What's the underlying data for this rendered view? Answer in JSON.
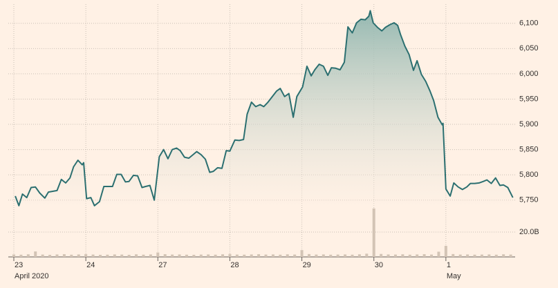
{
  "chart_data": {
    "type": "line",
    "xlim": [
      0,
      7
    ],
    "xticks": [
      {
        "value": 0,
        "label": "23"
      },
      {
        "value": 1,
        "label": "24"
      },
      {
        "value": 2,
        "label": "27"
      },
      {
        "value": 3,
        "label": "28"
      },
      {
        "value": 4,
        "label": "29"
      },
      {
        "value": 5,
        "label": "30"
      },
      {
        "value": 6,
        "label": "1"
      }
    ],
    "x_period_labels": [
      {
        "value": 0,
        "label": "April 2020"
      },
      {
        "value": 6,
        "label": "May"
      }
    ],
    "ylim": [
      5736,
      6127
    ],
    "yticks": [
      {
        "value": 5750,
        "label": "5,750"
      },
      {
        "value": 5800,
        "label": "5,800"
      },
      {
        "value": 5850,
        "label": "5,850"
      },
      {
        "value": 5900,
        "label": "5,900"
      },
      {
        "value": 5950,
        "label": "5,950"
      },
      {
        "value": 6000,
        "label": "6,000"
      },
      {
        "value": 6050,
        "label": "6,050"
      },
      {
        "value": 6100,
        "label": "6,100"
      }
    ],
    "y2lim": [
      0,
      40
    ],
    "y2ticks": [
      {
        "value": 20,
        "label": "20.0B"
      }
    ],
    "grid": true,
    "series": [
      {
        "color": "#2b6f70",
        "x": [
          0.02,
          0.07,
          0.12,
          0.18,
          0.24,
          0.3,
          0.36,
          0.43,
          0.48,
          0.56,
          0.6,
          0.66,
          0.72,
          0.78,
          0.83,
          0.89,
          0.95,
          0.97,
          1.01,
          1.07,
          1.12,
          1.19,
          1.25,
          1.31,
          1.37,
          1.43,
          1.49,
          1.55,
          1.6,
          1.66,
          1.72,
          1.78,
          1.83,
          1.89,
          1.95,
          2.02,
          2.08,
          2.14,
          2.2,
          2.26,
          2.31,
          2.37,
          2.43,
          2.49,
          2.54,
          2.6,
          2.66,
          2.72,
          2.77,
          2.83,
          2.89,
          2.95,
          3.0,
          3.07,
          3.13,
          3.19,
          3.24,
          3.3,
          3.36,
          3.42,
          3.47,
          3.53,
          3.59,
          3.65,
          3.7,
          3.76,
          3.82,
          3.88,
          3.93,
          4.01,
          4.07,
          4.13,
          4.18,
          4.24,
          4.3,
          4.36,
          4.41,
          4.47,
          4.53,
          4.59,
          4.64,
          4.7,
          4.76,
          4.82,
          4.88,
          4.93,
          4.95,
          4.99,
          5.05,
          5.11,
          5.16,
          5.22,
          5.28,
          5.33,
          5.37,
          5.43,
          5.49,
          5.55,
          5.6,
          5.66,
          5.72,
          5.78,
          5.83,
          5.89,
          5.95,
          5.96,
          6.0,
          6.06,
          6.11,
          6.17,
          6.23,
          6.29,
          6.34,
          6.4,
          6.46,
          6.52,
          6.57,
          6.63,
          6.69,
          6.75,
          6.8,
          6.86,
          6.93
        ],
        "values": [
          5758,
          5739,
          5762,
          5755,
          5775,
          5776,
          5764,
          5754,
          5766,
          5768,
          5769,
          5791,
          5784,
          5794,
          5816,
          5829,
          5820,
          5824,
          5753,
          5755,
          5739,
          5747,
          5777,
          5777,
          5777,
          5801,
          5801,
          5786,
          5787,
          5799,
          5798,
          5775,
          5777,
          5779,
          5750,
          5836,
          5850,
          5832,
          5850,
          5853,
          5848,
          5835,
          5833,
          5840,
          5846,
          5840,
          5831,
          5805,
          5807,
          5814,
          5813,
          5848,
          5847,
          5869,
          5868,
          5870,
          5920,
          5944,
          5935,
          5939,
          5935,
          5944,
          5955,
          5966,
          5971,
          5955,
          5961,
          5914,
          5955,
          5974,
          6015,
          5996,
          6008,
          6019,
          6015,
          5997,
          6012,
          6011,
          6008,
          6023,
          6093,
          6081,
          6101,
          6108,
          6107,
          6114,
          6125,
          6101,
          6092,
          6085,
          6092,
          6097,
          6101,
          6096,
          6078,
          6055,
          6038,
          6007,
          6026,
          5999,
          5985,
          5966,
          5947,
          5914,
          5899,
          5902,
          5772,
          5758,
          5784,
          5776,
          5771,
          5776,
          5783,
          5783,
          5784,
          5787,
          5790,
          5783,
          5794,
          5779,
          5780,
          5775,
          5755
        ]
      },
      {
        "type": "bar",
        "axis": "y2",
        "color": "#d3c4b5",
        "x": [
          0.0,
          0.1,
          0.2,
          0.3,
          0.4,
          0.5,
          0.6,
          0.7,
          0.8,
          0.9,
          1.0,
          1.1,
          1.2,
          1.3,
          1.4,
          1.5,
          1.6,
          1.7,
          1.8,
          1.9,
          2.0,
          2.1,
          2.2,
          2.3,
          2.4,
          2.5,
          2.6,
          2.7,
          2.8,
          2.9,
          3.0,
          3.1,
          3.2,
          3.3,
          3.4,
          3.5,
          3.6,
          3.7,
          3.8,
          3.9,
          4.0,
          4.1,
          4.2,
          4.3,
          4.4,
          4.5,
          4.6,
          4.7,
          4.8,
          4.9,
          5.0,
          5.1,
          5.2,
          5.3,
          5.4,
          5.5,
          5.6,
          5.7,
          5.8,
          5.9,
          6.0,
          6.1,
          6.2,
          6.3,
          6.4,
          6.5,
          6.6,
          6.7,
          6.8,
          6.9
        ],
        "values": [
          2,
          1.8,
          2.1,
          4.4,
          1.9,
          1.7,
          2,
          2.2,
          1.8,
          2,
          2.3,
          1.9,
          1.7,
          1.8,
          2,
          1.9,
          1.7,
          2.1,
          1.8,
          2,
          3.6,
          2.2,
          1.9,
          2,
          1.8,
          1.7,
          1.9,
          2,
          1.8,
          2.1,
          2.4,
          1.9,
          1.8,
          2,
          2.2,
          1.9,
          2,
          1.8,
          2.1,
          1.9,
          5.5,
          2.3,
          1.9,
          2,
          1.8,
          1.9,
          2,
          1.8,
          2.1,
          2.6,
          39,
          2.4,
          2,
          1.9,
          2.1,
          1.8,
          2,
          2.2,
          1.9,
          4.2,
          8.9,
          2.3,
          1.9,
          2,
          1.8,
          1.9,
          2,
          1.8,
          2.1,
          1.9
        ]
      }
    ]
  }
}
